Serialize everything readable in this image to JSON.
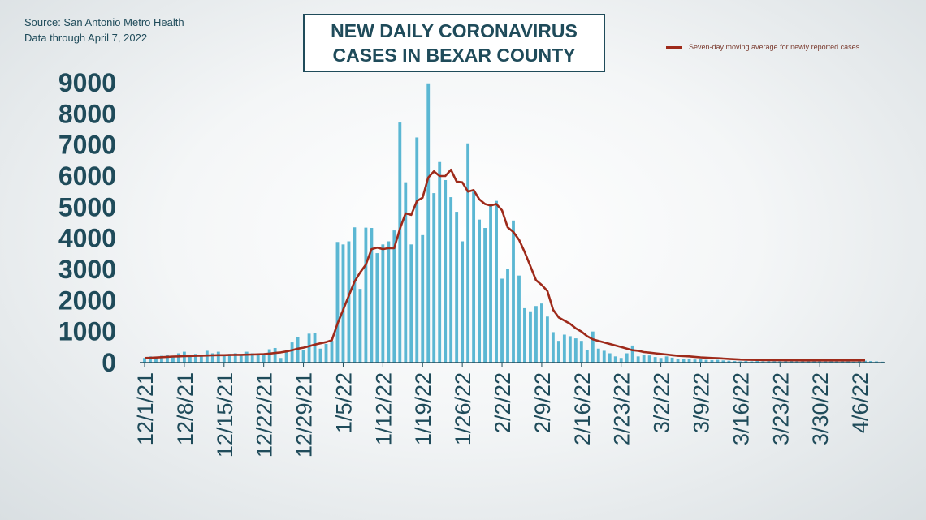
{
  "source_line1": "Source: San Antonio Metro Health",
  "source_line2": "Data through  April 7, 2022",
  "title_line1": "NEW DAILY CORONAVIRUS",
  "title_line2": "CASES IN BEXAR COUNTY",
  "colors": {
    "bar": "#5bb7d3",
    "line": "#9e2a1a",
    "text": "#1f4b5a"
  },
  "chart_data": {
    "type": "bar",
    "title": "NEW DAILY CORONAVIRUS CASES IN BEXAR COUNTY",
    "start_date": "2021-12-01",
    "end_date": "2022-04-07",
    "ylim": [
      0,
      9000
    ],
    "yticks": [
      0,
      1000,
      2000,
      3000,
      4000,
      5000,
      6000,
      7000,
      8000,
      9000
    ],
    "xtick_labels": [
      "12/1/21",
      "12/8/21",
      "12/15/21",
      "12/22/21",
      "12/29/21",
      "1/5/22",
      "1/12/22",
      "1/19/22",
      "1/26/22",
      "2/2/22",
      "2/9/22",
      "2/16/22",
      "2/23/22",
      "3/2/22",
      "3/9/22",
      "3/16/22",
      "3/23/22",
      "3/30/22",
      "4/6/22"
    ],
    "legend": {
      "position": "top-right",
      "entries": [
        "Seven-day moving average for newly reported cases"
      ]
    },
    "series": [
      {
        "type": "bar",
        "values": [
          150,
          200,
          180,
          220,
          250,
          200,
          300,
          350,
          250,
          280,
          200,
          380,
          300,
          350,
          250,
          280,
          300,
          250,
          350,
          300,
          280,
          250,
          430,
          470,
          150,
          350,
          650,
          830,
          400,
          930,
          950,
          450,
          600,
          700,
          3880,
          3800,
          3900,
          4350,
          2370,
          4340,
          4330,
          3520,
          3800,
          3900,
          4250,
          7720,
          5800,
          3800,
          7240,
          4100,
          8980,
          5450,
          6450,
          5870,
          5320,
          4850,
          3900,
          7050,
          5500,
          4600,
          4330,
          5100,
          5200,
          2700,
          3000,
          4570,
          2800,
          1750,
          1650,
          1820,
          1900,
          1480,
          980,
          700,
          900,
          850,
          780,
          700,
          400,
          1000,
          450,
          380,
          300,
          200,
          150,
          300,
          550,
          200,
          250,
          230,
          180,
          150,
          200,
          160,
          130,
          120,
          110,
          100,
          130,
          90,
          80,
          90,
          70,
          60,
          50,
          40,
          50,
          40,
          60,
          40,
          50,
          40,
          40,
          50,
          40,
          60,
          50,
          40,
          40,
          50,
          40,
          40,
          60,
          50,
          40,
          30,
          40,
          60,
          50,
          40,
          30
        ]
      },
      {
        "type": "line",
        "name": "Seven-day moving average for newly reported cases",
        "values": [
          150,
          155,
          165,
          175,
          185,
          195,
          200,
          210,
          215,
          220,
          225,
          230,
          235,
          240,
          240,
          245,
          250,
          250,
          255,
          260,
          265,
          275,
          290,
          310,
          330,
          360,
          400,
          450,
          480,
          530,
          580,
          620,
          660,
          720,
          1250,
          1700,
          2150,
          2600,
          2900,
          3150,
          3650,
          3700,
          3650,
          3680,
          3680,
          4300,
          4800,
          4750,
          5200,
          5300,
          5950,
          6150,
          6000,
          6000,
          6200,
          5820,
          5800,
          5500,
          5550,
          5250,
          5100,
          5050,
          5100,
          4900,
          4350,
          4200,
          3950,
          3550,
          3100,
          2650,
          2500,
          2300,
          1700,
          1450,
          1350,
          1250,
          1100,
          1000,
          850,
          750,
          700,
          650,
          600,
          550,
          500,
          450,
          400,
          380,
          340,
          320,
          300,
          280,
          260,
          240,
          220,
          210,
          200,
          185,
          170,
          160,
          150,
          140,
          130,
          120,
          110,
          100,
          95,
          90,
          85,
          80,
          78,
          76,
          75,
          74,
          73,
          72,
          71,
          70,
          70,
          70,
          70,
          70,
          70,
          70,
          70,
          70,
          70,
          70
        ]
      }
    ]
  }
}
